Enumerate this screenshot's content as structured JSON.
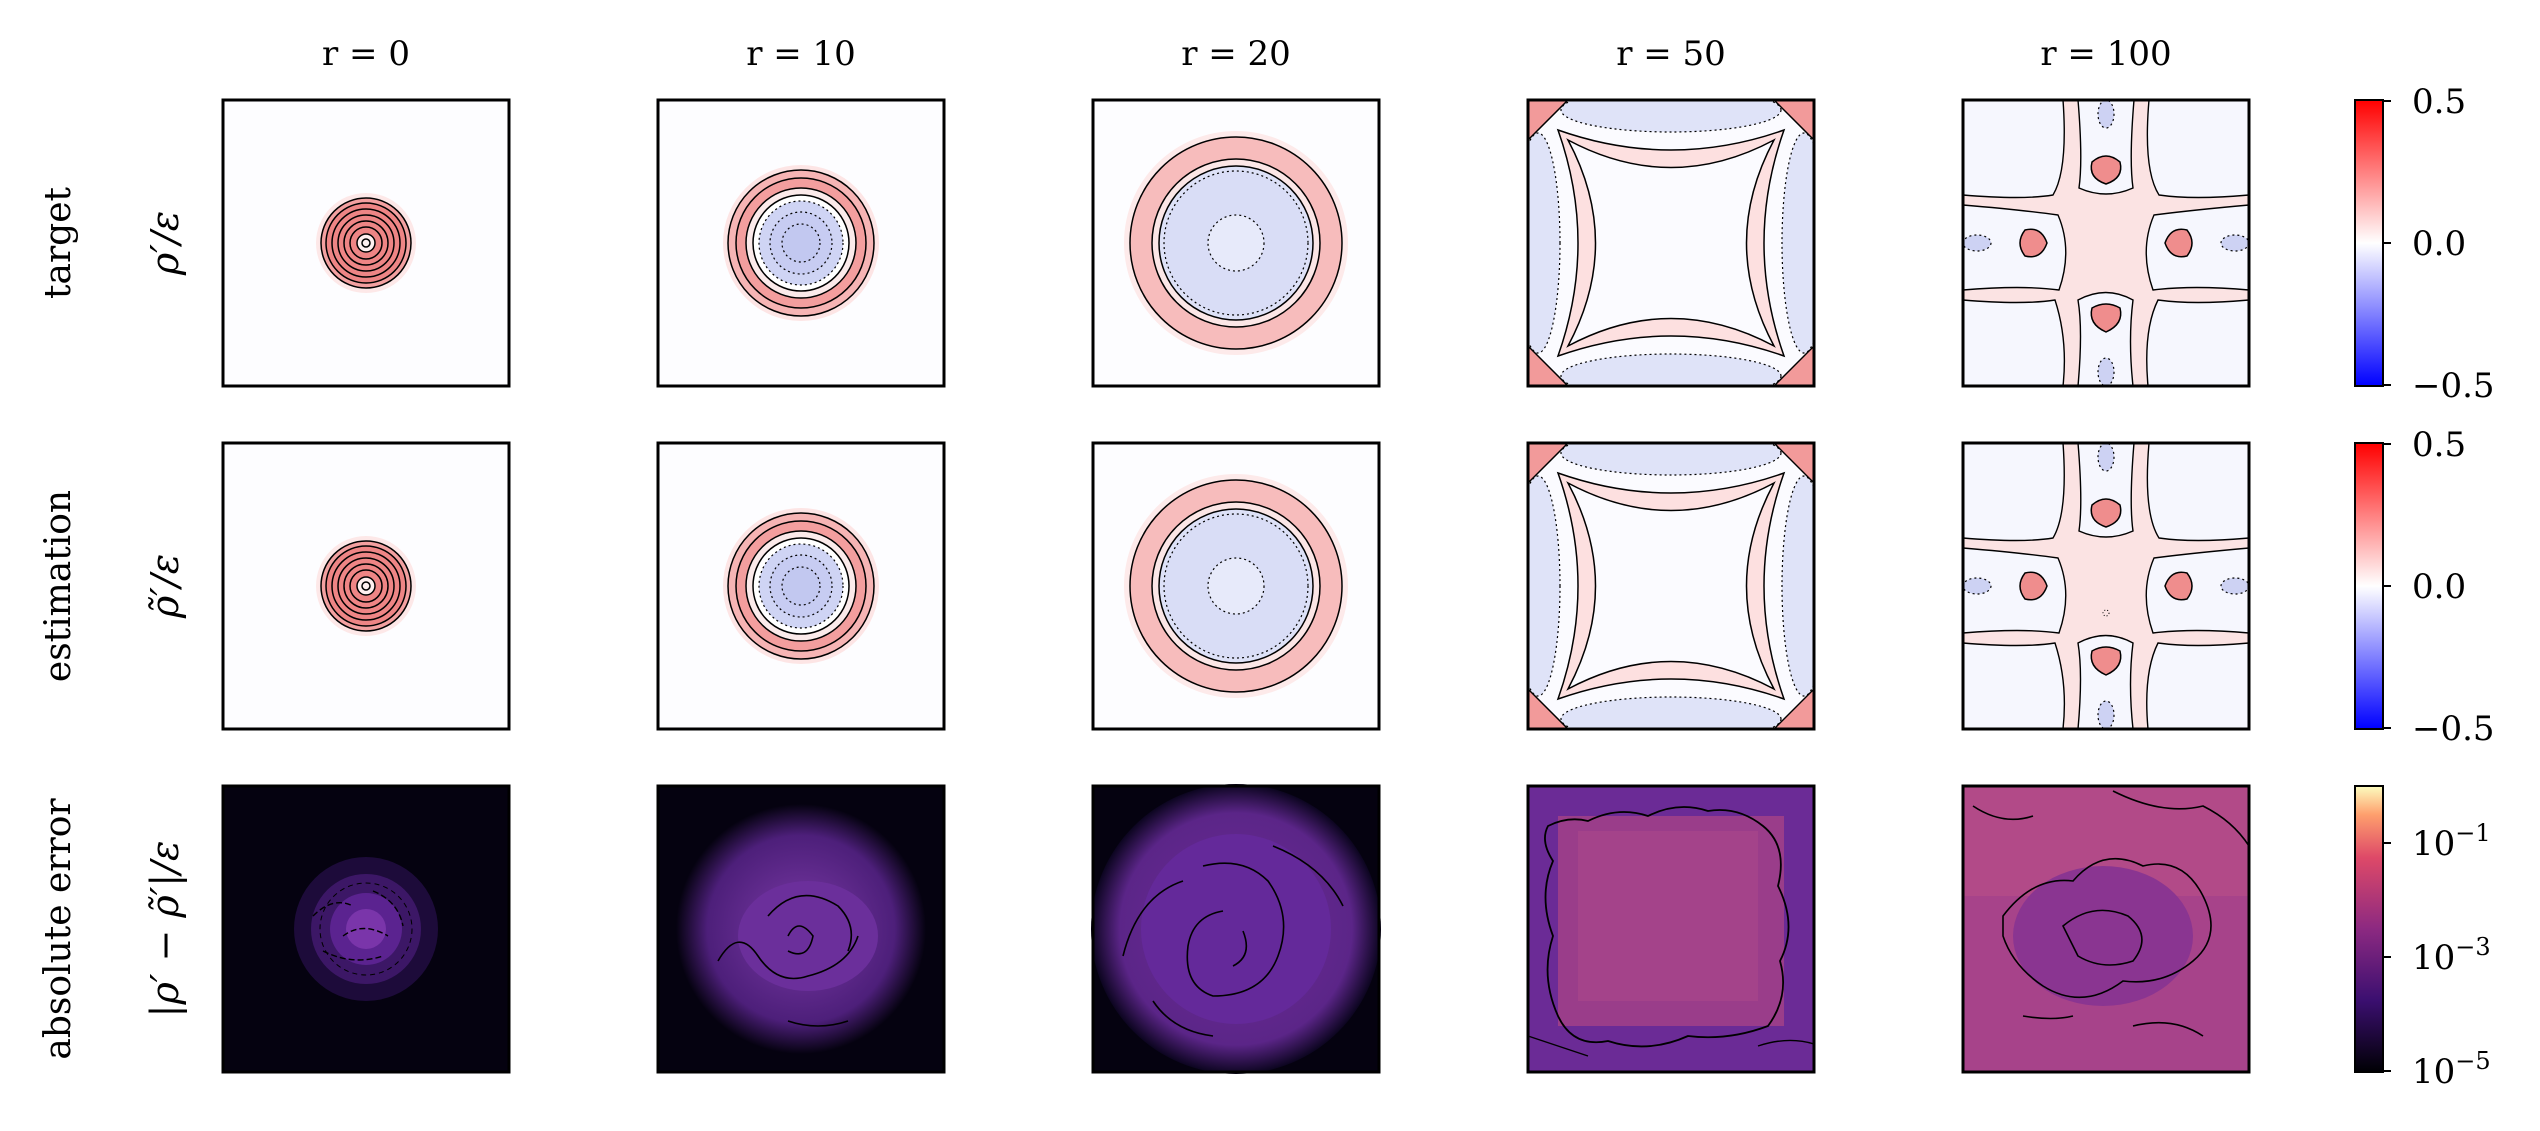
{
  "chart_data": {
    "type": "heatmap",
    "title": "",
    "columns": [
      "r = 0",
      "r = 10",
      "r = 20",
      "r = 50",
      "r = 100"
    ],
    "column_r_values": [
      0,
      10,
      20,
      50,
      100
    ],
    "rows": [
      {
        "name": "target",
        "ylabel": "ρ′/ε",
        "colormap": "bwr",
        "scale": "linear",
        "colorbar_ticks": [
          "0.5",
          "0.0",
          "−0.5"
        ],
        "clim": [
          -0.5,
          0.5
        ]
      },
      {
        "name": "estimation",
        "ylabel": "ρ̃′/ε",
        "colormap": "bwr",
        "scale": "linear",
        "colorbar_ticks": [
          "0.5",
          "0.0",
          "−0.5"
        ],
        "clim": [
          -0.5,
          0.5
        ]
      },
      {
        "name": "absolute error",
        "ylabel": "|ρ′ − ρ̃′|/ε",
        "colormap": "magma",
        "scale": "log",
        "colorbar_ticks": [
          "10",
          "10",
          "10"
        ],
        "colorbar_exponents": [
          "−1",
          "−3",
          "−5"
        ],
        "clim": [
          1e-05,
          1
        ]
      }
    ],
    "grid": false,
    "legend": "colorbars-right"
  },
  "colors": {
    "positive": "#f08a8a",
    "negative": "#d8dcf6",
    "background": "#fdfdff",
    "error_dark": "#060312",
    "error_mid": "#6a2a9a",
    "error_high": "#b6417a",
    "contour": "#000000"
  }
}
